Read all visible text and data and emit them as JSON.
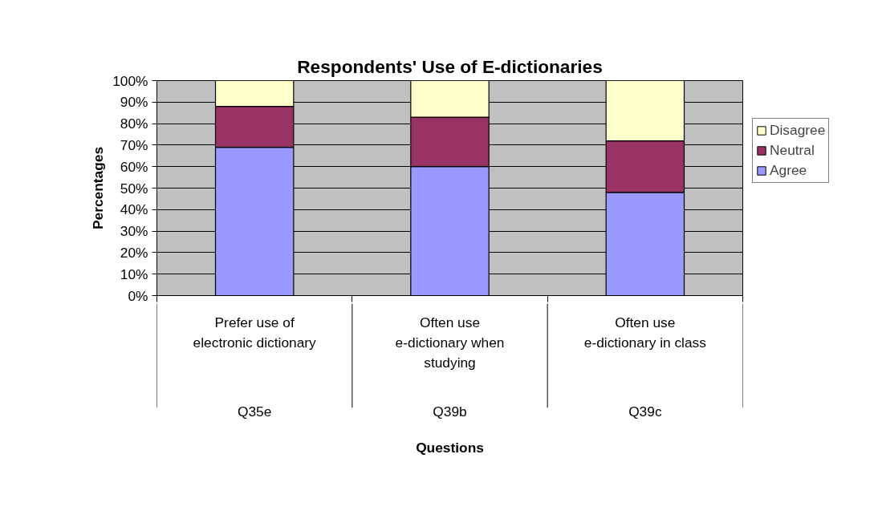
{
  "chart_data": {
    "type": "bar",
    "title": "Respondents' Use of E-dictionaries",
    "xlabel": "Questions",
    "ylabel": "Percentages",
    "categories": [
      "Prefer use of electronic dictionary",
      "Often use e-dictionary when studying",
      "Often use e-dictionary in class"
    ],
    "annotations": [
      "Q35e",
      "Q39b",
      "Q39c"
    ],
    "series": [
      {
        "name": "Agree",
        "color": "#9999ff",
        "values": [
          69,
          60,
          48
        ]
      },
      {
        "name": "Neutral",
        "color": "#993366",
        "values": [
          19,
          23,
          24
        ]
      },
      {
        "name": "Disagree",
        "color": "#ffffcc",
        "values": [
          12,
          17,
          28
        ]
      }
    ],
    "stacked": true,
    "ylim": [
      0,
      100
    ],
    "yticks": [
      {
        "value": 0,
        "label": "0%"
      },
      {
        "value": 10,
        "label": "10%"
      },
      {
        "value": 20,
        "label": "20%"
      },
      {
        "value": 30,
        "label": "30%"
      },
      {
        "value": 40,
        "label": "40%"
      },
      {
        "value": 50,
        "label": "50%"
      },
      {
        "value": 60,
        "label": "60%"
      },
      {
        "value": 70,
        "label": "70%"
      },
      {
        "value": 80,
        "label": "80%"
      },
      {
        "value": 90,
        "label": "90%"
      },
      {
        "value": 100,
        "label": "100%"
      }
    ],
    "grid": "y",
    "legend": "right"
  }
}
